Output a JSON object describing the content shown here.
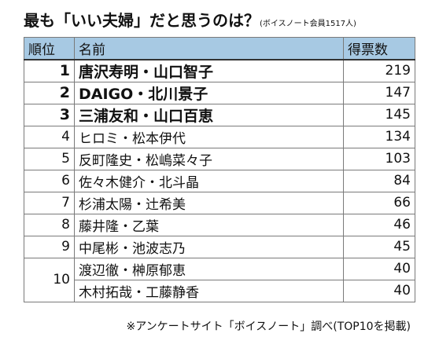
{
  "title": {
    "main": "最も「いい夫婦」だと思うのは？",
    "sub": "(ボイスノート会員1517人)"
  },
  "table": {
    "headers": [
      "順位",
      "名前",
      "得票数"
    ],
    "rows": [
      {
        "rank": "1",
        "name": "唐沢寿明・山口智子",
        "votes": "219"
      },
      {
        "rank": "2",
        "name": "DAIGO・北川景子",
        "votes": "147"
      },
      {
        "rank": "3",
        "name": "三浦友和・山口百恵",
        "votes": "145"
      },
      {
        "rank": "4",
        "name": "ヒロミ・松本伊代",
        "votes": "134"
      },
      {
        "rank": "5",
        "name": "反町隆史・松嶋菜々子",
        "votes": "103"
      },
      {
        "rank": "6",
        "name": "佐々木健介・北斗晶",
        "votes": "84"
      },
      {
        "rank": "7",
        "name": "杉浦太陽・辻希美",
        "votes": "66"
      },
      {
        "rank": "8",
        "name": "藤井隆・乙葉",
        "votes": "46"
      },
      {
        "rank": "9",
        "name": "中尾彬・池波志乃",
        "votes": "45"
      },
      {
        "rank": "10",
        "name": "渡辺徹・榊原郁恵",
        "votes": "40"
      },
      {
        "rank": "",
        "name": "木村拓哉・工藤静香",
        "votes": "40"
      }
    ]
  },
  "footnote": "※アンケートサイト「ボイスノート」調べ(TOP10を掲載)"
}
